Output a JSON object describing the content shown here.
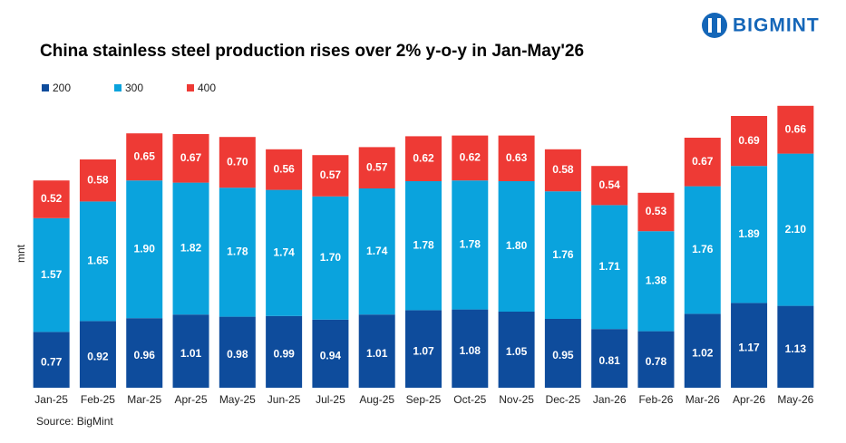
{
  "chart_data": {
    "type": "stacked_bar",
    "title": "China stainless steel production rises over 2% y-o-y in Jan-May'26",
    "brand": "BIGMINT",
    "ylabel": "mnt",
    "source": "Source: BigMint",
    "legend": "top-left",
    "ylim": [
      0,
      4
    ],
    "categories": [
      "Jan-25",
      "Feb-25",
      "Mar-25",
      "Apr-25",
      "May-25",
      "Jun-25",
      "Jul-25",
      "Aug-25",
      "Sep-25",
      "Oct-25",
      "Nov-25",
      "Dec-25",
      "Jan-26",
      "Feb-26",
      "Mar-26",
      "Apr-26",
      "May-26"
    ],
    "series": [
      {
        "name": "200",
        "color": "#0e4c9c",
        "values": [
          0.77,
          0.92,
          0.96,
          1.01,
          0.98,
          0.99,
          0.94,
          1.01,
          1.07,
          1.08,
          1.05,
          0.95,
          0.81,
          0.78,
          1.02,
          1.17,
          1.13
        ],
        "value_labels": [
          "0.77",
          "0.92",
          "0.96",
          "1.01",
          "0.98",
          "0.99",
          "0.94",
          "1.01",
          "1.07",
          "1.08",
          "1.05",
          "0.95",
          "0.81",
          "0.78",
          "1.02",
          "1.17",
          "1.13"
        ]
      },
      {
        "name": "300",
        "color": "#0aa3dd",
        "values": [
          1.57,
          1.65,
          1.9,
          1.82,
          1.78,
          1.74,
          1.7,
          1.74,
          1.78,
          1.78,
          1.8,
          1.76,
          1.71,
          1.38,
          1.76,
          1.89,
          2.1
        ],
        "value_labels": [
          "1.57",
          "1.65",
          "1.90",
          "1.82",
          "1.78",
          "1.74",
          "1.70",
          "1.74",
          "1.78",
          "1.78",
          "1.80",
          "1.76",
          "1.71",
          "1.38",
          "1.76",
          "1.89",
          "2.10"
        ]
      },
      {
        "name": "400",
        "color": "#ee3a35",
        "values": [
          0.52,
          0.58,
          0.65,
          0.67,
          0.7,
          0.56,
          0.57,
          0.57,
          0.62,
          0.62,
          0.63,
          0.58,
          0.54,
          0.53,
          0.67,
          0.69,
          0.66
        ],
        "value_labels": [
          "0.52",
          "0.58",
          "0.65",
          "0.67",
          "0.70",
          "0.56",
          "0.57",
          "0.57",
          "0.62",
          "0.62",
          "0.63",
          "0.58",
          "0.54",
          "0.53",
          "0.67",
          "0.69",
          "0.66"
        ]
      }
    ]
  }
}
